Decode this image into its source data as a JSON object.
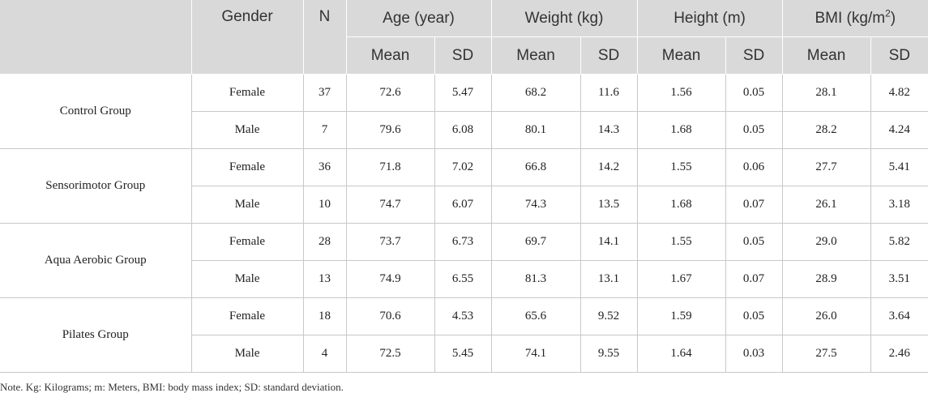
{
  "table": {
    "headers": {
      "group": "",
      "gender": "Gender",
      "n": "N",
      "age": "Age (year)",
      "weight": "Weight (kg)",
      "height": "Height (m)",
      "bmi": "BMI (kg/m",
      "bmi_sup": "2",
      "bmi_close": ")",
      "mean": "Mean",
      "sd": "SD"
    },
    "groups": [
      {
        "name": "Control Group",
        "rows": [
          {
            "gender": "Female",
            "n": "37",
            "age_mean": "72.6",
            "age_sd": "5.47",
            "weight_mean": "68.2",
            "weight_sd": "11.6",
            "height_mean": "1.56",
            "height_sd": "0.05",
            "bmi_mean": "28.1",
            "bmi_sd": "4.82"
          },
          {
            "gender": "Male",
            "n": "7",
            "age_mean": "79.6",
            "age_sd": "6.08",
            "weight_mean": "80.1",
            "weight_sd": "14.3",
            "height_mean": "1.68",
            "height_sd": "0.05",
            "bmi_mean": "28.2",
            "bmi_sd": "4.24"
          }
        ]
      },
      {
        "name": "Sensorimotor Group",
        "rows": [
          {
            "gender": "Female",
            "n": "36",
            "age_mean": "71.8",
            "age_sd": "7.02",
            "weight_mean": "66.8",
            "weight_sd": "14.2",
            "height_mean": "1.55",
            "height_sd": "0.06",
            "bmi_mean": "27.7",
            "bmi_sd": "5.41"
          },
          {
            "gender": "Male",
            "n": "10",
            "age_mean": "74.7",
            "age_sd": "6.07",
            "weight_mean": "74.3",
            "weight_sd": "13.5",
            "height_mean": "1.68",
            "height_sd": "0.07",
            "bmi_mean": "26.1",
            "bmi_sd": "3.18"
          }
        ]
      },
      {
        "name": "Aqua Aerobic Group",
        "rows": [
          {
            "gender": "Female",
            "n": "28",
            "age_mean": "73.7",
            "age_sd": "6.73",
            "weight_mean": "69.7",
            "weight_sd": "14.1",
            "height_mean": "1.55",
            "height_sd": "0.05",
            "bmi_mean": "29.0",
            "bmi_sd": "5.82"
          },
          {
            "gender": "Male",
            "n": "13",
            "age_mean": "74.9",
            "age_sd": "6.55",
            "weight_mean": "81.3",
            "weight_sd": "13.1",
            "height_mean": "1.67",
            "height_sd": "0.07",
            "bmi_mean": "28.9",
            "bmi_sd": "3.51"
          }
        ]
      },
      {
        "name": "Pilates Group",
        "rows": [
          {
            "gender": "Female",
            "n": "18",
            "age_mean": "70.6",
            "age_sd": "4.53",
            "weight_mean": "65.6",
            "weight_sd": "9.52",
            "height_mean": "1.59",
            "height_sd": "0.05",
            "bmi_mean": "26.0",
            "bmi_sd": "3.64"
          },
          {
            "gender": "Male",
            "n": "4",
            "age_mean": "72.5",
            "age_sd": "5.45",
            "weight_mean": "74.1",
            "weight_sd": "9.55",
            "height_mean": "1.64",
            "height_sd": "0.03",
            "bmi_mean": "27.5",
            "bmi_sd": "2.46"
          }
        ]
      }
    ]
  },
  "note": "Note. Kg: Kilograms; m: Meters, BMI: body mass index; SD: standard deviation.",
  "colors": {
    "header_bg": "#d9d9d9",
    "grid": "#c8c8c8",
    "text": "#222222"
  }
}
